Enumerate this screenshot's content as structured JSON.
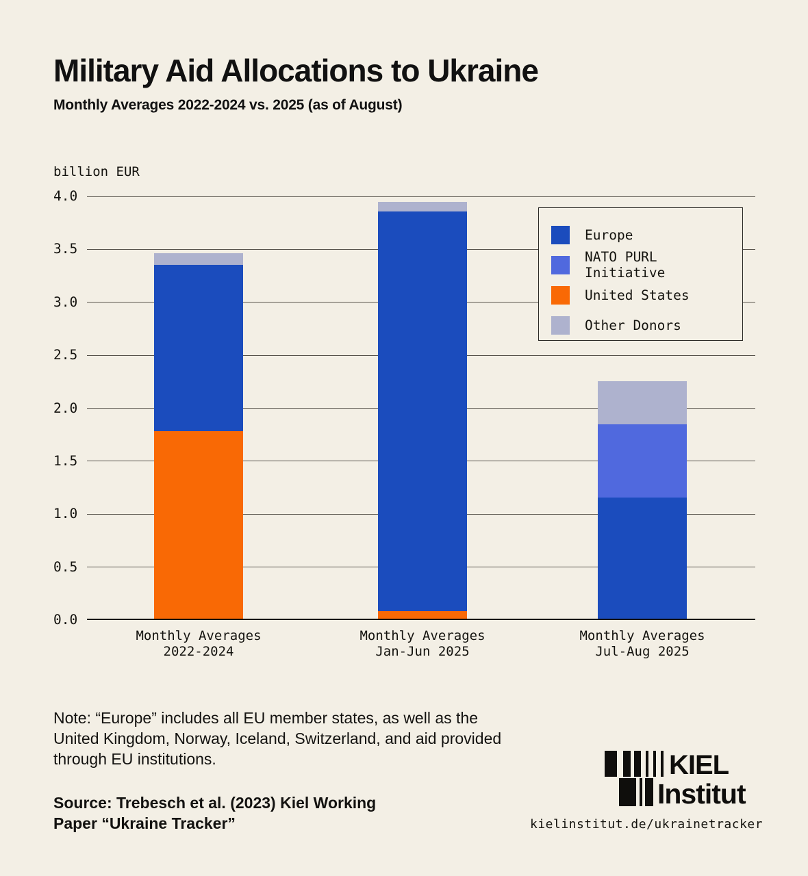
{
  "page": {
    "title": "Military Aid Allocations to Ukraine",
    "subtitle": "Monthly Averages 2022-2024 vs. 2025 (as of August)",
    "unit_label": "billion EUR"
  },
  "colors": {
    "europe": "#1B4CBD",
    "nato_purl": "#5069DE",
    "united_states": "#F96905",
    "other_donors": "#AEB2CE",
    "background": "#F3EFE5",
    "grid": "#56524B",
    "text": "#111111"
  },
  "legend": {
    "items": [
      {
        "label": "Europe",
        "key": "europe"
      },
      {
        "label": "NATO PURL Initiative",
        "key": "nato_purl"
      },
      {
        "label": "United States",
        "key": "united_states"
      },
      {
        "label": "Other Donors",
        "key": "other_donors"
      }
    ]
  },
  "chart_data": {
    "type": "bar",
    "stacked": true,
    "title": "Military Aid Allocations to Ukraine",
    "subtitle": "Monthly Averages 2022-2024 vs. 2025 (as of August)",
    "ylabel": "billion EUR",
    "ylim": [
      0,
      4.0
    ],
    "yticks": [
      0.0,
      0.5,
      1.0,
      1.5,
      2.0,
      2.5,
      3.0,
      3.5,
      4.0
    ],
    "grid": true,
    "legend_position": "upper right",
    "categories": [
      [
        "Monthly Averages",
        "2022-2024"
      ],
      [
        "Monthly Averages",
        "Jan-Jun 2025"
      ],
      [
        "Monthly Averages",
        "Jul-Aug 2025"
      ]
    ],
    "series": [
      {
        "name": "United States",
        "key": "united_states",
        "values": [
          1.78,
          0.08,
          0.0
        ]
      },
      {
        "name": "Europe",
        "key": "europe",
        "values": [
          1.57,
          3.77,
          1.15
        ]
      },
      {
        "name": "NATO PURL Initiative",
        "key": "nato_purl",
        "values": [
          0.0,
          0.0,
          0.69
        ]
      },
      {
        "name": "Other Donors",
        "key": "other_donors",
        "values": [
          0.11,
          0.09,
          0.41
        ]
      }
    ],
    "totals": [
      3.46,
      3.94,
      2.25
    ]
  },
  "note": {
    "line1": "Note: “Europe” includes all EU member states, as well as the",
    "line2": "United Kingdom, Norway, Iceland, Switzerland, and aid provided",
    "line3": "through EU institutions."
  },
  "source": {
    "line1": "Source: Trebesch et al. (2023) Kiel Working",
    "line2": "Paper “Ukraine Tracker”"
  },
  "footer": {
    "logo_line1": "KIEL",
    "logo_line2": "Institut",
    "url": "kielinstitut.de/ukrainetracker"
  }
}
